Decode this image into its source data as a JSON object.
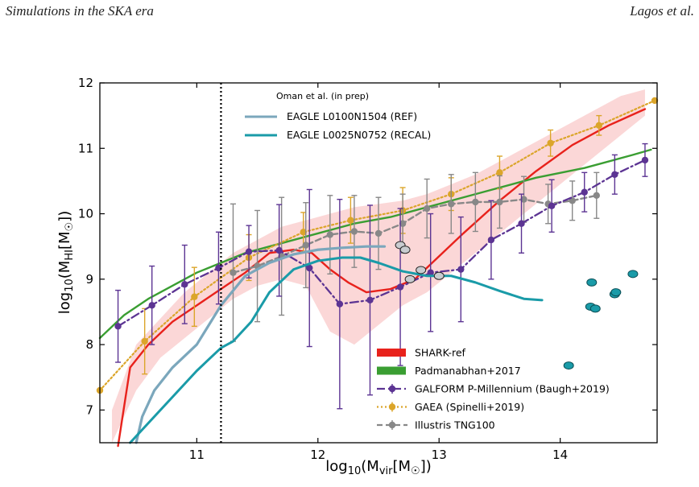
{
  "header": {
    "left": "Simulations in the SKA era",
    "right": "Lagos et al."
  },
  "chart_data": {
    "type": "line",
    "xlabel": "log10(Mvir[M☉])",
    "ylabel": "log10(MHI[M☉])",
    "xlim": [
      10.2,
      14.8
    ],
    "ylim": [
      6.5,
      12.0
    ],
    "xticks": [
      11,
      12,
      13,
      14
    ],
    "yticks": [
      7,
      8,
      9,
      10,
      11,
      12
    ],
    "vline": {
      "x": 11.2,
      "style": "dotted"
    },
    "legend_title": "Oman et al. (in prep)",
    "legend_top": [
      {
        "name": "EAGLE L0100N1504 (REF)",
        "color": "#7ba7bc"
      },
      {
        "name": "EAGLE L0025N0752 (RECAL)",
        "color": "#1a9ba8"
      }
    ],
    "legend_bottom": [
      {
        "name": "SHARK-ref",
        "color": "#e8221c"
      },
      {
        "name": "Padmanabhan+2017",
        "color": "#3a9e32"
      },
      {
        "name": "GALFORM P-Millennium (Baugh+2019)",
        "color": "#5c3493"
      },
      {
        "name": "GAEA (Spinelli+2019)",
        "color": "#dba52a"
      },
      {
        "name": "Illustris TNG100",
        "color": "#888888"
      }
    ],
    "shark_band": {
      "x": [
        10.3,
        10.5,
        10.7,
        10.9,
        11.1,
        11.3,
        11.5,
        11.7,
        11.9,
        12.1,
        12.3,
        12.5,
        12.7,
        12.9,
        13.1,
        13.3,
        13.5,
        13.7,
        13.9,
        14.1,
        14.3,
        14.5,
        14.7
      ],
      "upper": [
        7.0,
        8.0,
        8.4,
        8.8,
        9.1,
        9.4,
        9.6,
        9.8,
        9.9,
        10.0,
        10.1,
        10.15,
        10.2,
        10.3,
        10.45,
        10.6,
        10.8,
        11.0,
        11.2,
        11.4,
        11.6,
        11.8,
        11.9
      ],
      "lower": [
        6.5,
        7.3,
        7.8,
        8.1,
        8.4,
        8.7,
        8.9,
        9.0,
        8.9,
        8.2,
        8.0,
        8.3,
        8.6,
        8.8,
        9.1,
        9.4,
        9.7,
        10.0,
        10.3,
        10.6,
        10.9,
        11.2,
        11.5
      ]
    },
    "series": [
      {
        "name": "SHARK-ref",
        "color": "#e8221c",
        "x": [
          10.35,
          10.45,
          10.6,
          10.8,
          11.0,
          11.2,
          11.4,
          11.6,
          11.8,
          11.95,
          12.1,
          12.25,
          12.4,
          12.6,
          12.8,
          13.0,
          13.2,
          13.5,
          13.8,
          14.1,
          14.4,
          14.7
        ],
        "y": [
          6.45,
          7.65,
          8.0,
          8.35,
          8.6,
          8.85,
          9.1,
          9.4,
          9.45,
          9.4,
          9.15,
          8.95,
          8.8,
          8.85,
          9.0,
          9.35,
          9.7,
          10.2,
          10.65,
          11.05,
          11.35,
          11.6
        ]
      },
      {
        "name": "Padmanabhan+2017",
        "color": "#3a9e32",
        "x": [
          10.2,
          10.4,
          10.6,
          10.8,
          11.0,
          11.2,
          11.4,
          11.6,
          11.8,
          12.0,
          12.3,
          12.6,
          13.0,
          13.4,
          13.8,
          14.2,
          14.6,
          14.75
        ],
        "y": [
          8.1,
          8.45,
          8.7,
          8.9,
          9.1,
          9.25,
          9.4,
          9.5,
          9.6,
          9.7,
          9.85,
          9.95,
          10.15,
          10.35,
          10.55,
          10.7,
          10.9,
          10.98
        ]
      },
      {
        "name": "GALFORM P-Millennium (Baugh+2019)",
        "color": "#5c3493",
        "x": [
          10.35,
          10.63,
          10.9,
          11.18,
          11.43,
          11.68,
          11.93,
          12.18,
          12.43,
          12.68,
          12.93,
          13.18,
          13.43,
          13.68,
          13.93,
          14.2,
          14.45,
          14.7
        ],
        "y": [
          8.28,
          8.6,
          8.92,
          9.17,
          9.42,
          9.44,
          9.17,
          8.62,
          8.68,
          8.88,
          9.1,
          9.15,
          9.6,
          9.85,
          10.12,
          10.33,
          10.6,
          10.82
        ],
        "err": [
          0.55,
          0.6,
          0.6,
          0.55,
          0.4,
          0.7,
          1.2,
          1.6,
          1.45,
          1.2,
          0.9,
          0.8,
          0.6,
          0.45,
          0.4,
          0.3,
          0.3,
          0.25
        ]
      },
      {
        "name": "GAEA (Spinelli+2019)",
        "color": "#dba52a",
        "x": [
          10.2,
          10.57,
          10.98,
          11.43,
          11.88,
          12.27,
          12.7,
          13.1,
          13.5,
          13.92,
          14.32,
          14.78
        ],
        "y": [
          7.3,
          8.05,
          8.73,
          9.33,
          9.72,
          9.9,
          10.05,
          10.3,
          10.63,
          11.08,
          11.35,
          11.73
        ],
        "err": [
          0.0,
          0.5,
          0.45,
          0.35,
          0.3,
          0.35,
          0.35,
          0.25,
          0.25,
          0.2,
          0.15,
          0.0
        ]
      },
      {
        "name": "Illustris TNG100",
        "color": "#888888",
        "x": [
          11.3,
          11.5,
          11.7,
          11.9,
          12.1,
          12.3,
          12.5,
          12.7,
          12.9,
          13.1,
          13.3,
          13.5,
          13.7,
          13.9,
          14.1,
          14.3
        ],
        "y": [
          9.1,
          9.2,
          9.35,
          9.52,
          9.68,
          9.73,
          9.7,
          9.85,
          10.08,
          10.15,
          10.18,
          10.18,
          10.22,
          10.15,
          10.2,
          10.28
        ],
        "err": [
          1.05,
          0.85,
          0.9,
          0.65,
          0.6,
          0.55,
          0.55,
          0.45,
          0.45,
          0.45,
          0.45,
          0.4,
          0.35,
          0.3,
          0.3,
          0.35
        ]
      },
      {
        "name": "EAGLE L0100N1504 (REF)",
        "color": "#7ba7bc",
        "x": [
          10.5,
          10.55,
          10.65,
          10.8,
          11.0,
          11.2,
          11.4,
          11.6,
          11.8,
          12.0,
          12.2,
          12.4,
          12.55
        ],
        "y": [
          6.5,
          6.9,
          7.3,
          7.65,
          8.0,
          8.6,
          9.05,
          9.25,
          9.38,
          9.45,
          9.48,
          9.5,
          9.5
        ]
      },
      {
        "name": "EAGLE L0025N0752 (RECAL)",
        "color": "#1a9ba8",
        "x": [
          10.45,
          10.6,
          10.8,
          11.0,
          11.2,
          11.3,
          11.45,
          11.6,
          11.8,
          12.0,
          12.2,
          12.35,
          12.5,
          12.7,
          12.9,
          13.1,
          13.3,
          13.5,
          13.7,
          13.85
        ],
        "y": [
          6.5,
          6.8,
          7.2,
          7.6,
          7.95,
          8.05,
          8.35,
          8.8,
          9.15,
          9.28,
          9.33,
          9.33,
          9.25,
          9.12,
          9.05,
          9.05,
          8.95,
          8.82,
          8.7,
          8.68
        ]
      }
    ],
    "eagle_ref_points": {
      "x": [
        12.68,
        12.72,
        12.76,
        12.85,
        13.0
      ],
      "y": [
        9.52,
        9.45,
        9.0,
        9.14,
        9.05
      ]
    },
    "eagle_recal_points": {
      "x": [
        14.07,
        14.25,
        14.26,
        14.29,
        14.45,
        14.46,
        14.6
      ],
      "y": [
        7.68,
        8.58,
        8.95,
        8.55,
        8.77,
        8.8,
        9.08
      ]
    }
  }
}
